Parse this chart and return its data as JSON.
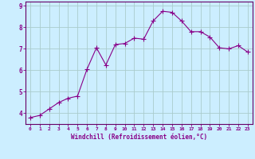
{
  "x": [
    0,
    1,
    2,
    3,
    4,
    5,
    6,
    7,
    8,
    9,
    10,
    11,
    12,
    13,
    14,
    15,
    16,
    17,
    18,
    19,
    20,
    21,
    22,
    23
  ],
  "y": [
    3.8,
    3.9,
    4.2,
    4.5,
    4.7,
    4.8,
    6.05,
    7.05,
    6.25,
    7.2,
    7.25,
    7.5,
    7.45,
    8.3,
    8.75,
    8.7,
    8.3,
    7.8,
    7.8,
    7.55,
    7.05,
    7.0,
    7.15,
    6.85
  ],
  "line_color": "#880088",
  "marker": "+",
  "bg_color": "#cceeff",
  "grid_color": "#aacccc",
  "axis_color": "#660066",
  "tick_color": "#880088",
  "xlabel": "Windchill (Refroidissement éolien,°C)",
  "ylim": [
    3.5,
    9.2
  ],
  "xlim": [
    -0.5,
    23.5
  ],
  "yticks": [
    4,
    5,
    6,
    7,
    8,
    9
  ],
  "xticks": [
    0,
    1,
    2,
    3,
    4,
    5,
    6,
    7,
    8,
    9,
    10,
    11,
    12,
    13,
    14,
    15,
    16,
    17,
    18,
    19,
    20,
    21,
    22,
    23
  ]
}
